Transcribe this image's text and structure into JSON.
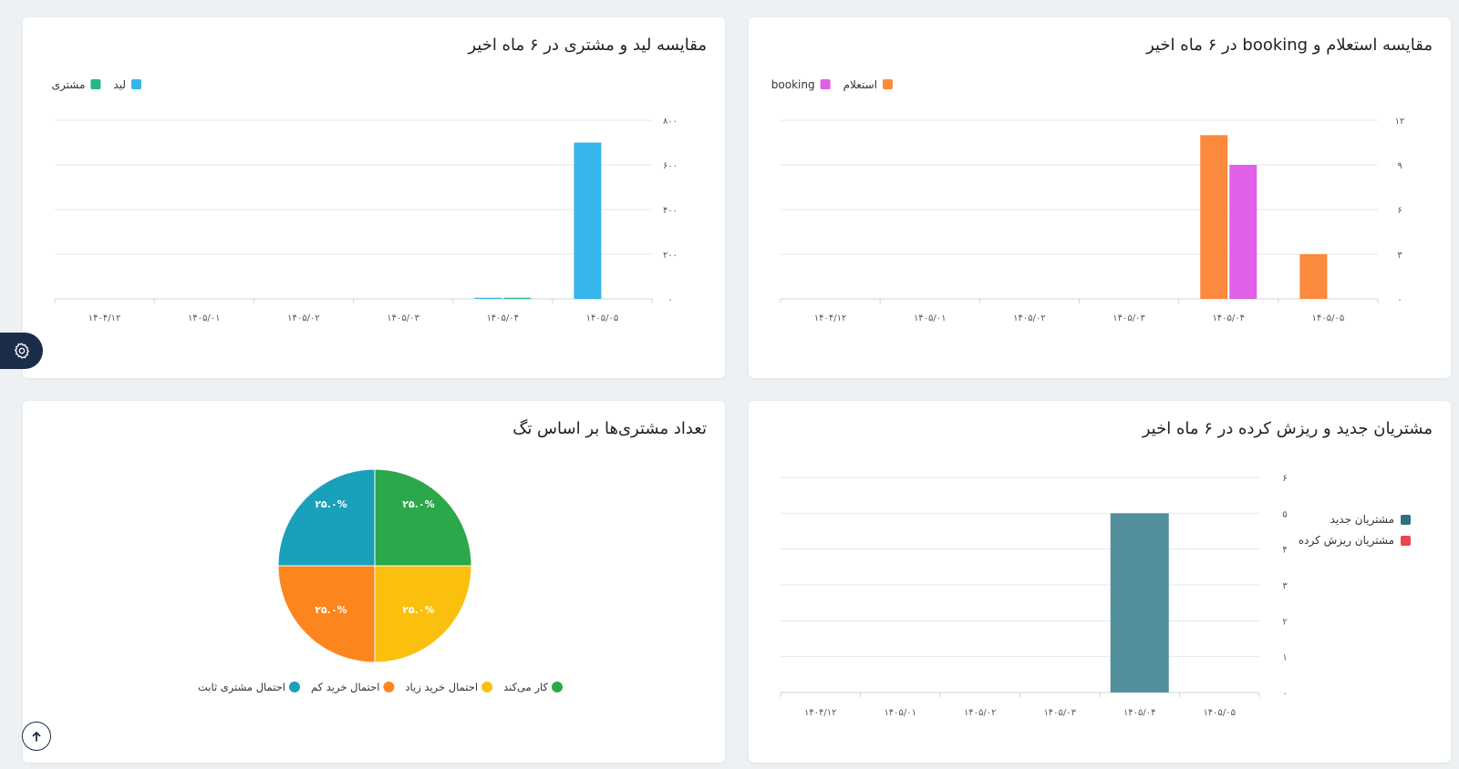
{
  "colors": {
    "grid": "#e5e7eb",
    "axis_text": "#555555",
    "settings_bg": "#1b2c4a"
  },
  "icons": {
    "settings": "gear-icon",
    "scroll_top": "arrow-up-icon"
  },
  "chart_data": [
    {
      "id": "inquiry_booking",
      "type": "bar",
      "title": "مقایسه استعلام و booking در ۶ ماه اخیر",
      "categories": [
        "۱۴۰۴/۱۲",
        "۱۴۰۵/۰۱",
        "۱۴۰۵/۰۲",
        "۱۴۰۵/۰۳",
        "۱۴۰۵/۰۴",
        "۱۴۰۵/۰۵"
      ],
      "series": [
        {
          "name": "استعلام",
          "color": "#fb8a3c",
          "values": [
            0,
            0,
            0,
            0,
            11,
            3
          ]
        },
        {
          "name": "booking",
          "color": "#e060e8",
          "values": [
            0,
            0,
            0,
            0,
            9,
            0
          ]
        }
      ],
      "ylim": [
        0,
        12
      ],
      "yticks": [
        "۰",
        "۳",
        "۶",
        "۹",
        "۱۲"
      ],
      "ytick_values": [
        0,
        3,
        6,
        9,
        12
      ],
      "legend": "top-left",
      "grid": true
    },
    {
      "id": "lead_customer",
      "type": "bar",
      "title": "مقایسه لید و مشتری در ۶ ماه اخیر",
      "categories": [
        "۱۴۰۴/۱۲",
        "۱۴۰۵/۰۱",
        "۱۴۰۵/۰۲",
        "۱۴۰۵/۰۳",
        "۱۴۰۵/۰۴",
        "۱۴۰۵/۰۵"
      ],
      "series": [
        {
          "name": "لید",
          "color": "#36b5ea",
          "values": [
            0,
            0,
            0,
            0,
            5,
            700
          ]
        },
        {
          "name": "مشتری",
          "color": "#22b884",
          "values": [
            0,
            0,
            0,
            0,
            5,
            0
          ]
        }
      ],
      "ylim": [
        0,
        800
      ],
      "yticks": [
        "۰",
        "۲۰۰",
        "۴۰۰",
        "۶۰۰",
        "۸۰۰"
      ],
      "ytick_values": [
        0,
        200,
        400,
        600,
        800
      ],
      "legend": "top-left",
      "grid": true
    },
    {
      "id": "new_churned",
      "type": "bar",
      "title": "مشتریان جدید و ریزش کرده در ۶ ماه اخیر",
      "categories": [
        "۱۴۰۴/۱۲",
        "۱۴۰۵/۰۱",
        "۱۴۰۵/۰۲",
        "۱۴۰۵/۰۳",
        "۱۴۰۵/۰۴",
        "۱۴۰۵/۰۵"
      ],
      "series": [
        {
          "name": "مشتریان جدید",
          "color": "#52909e",
          "legend_color": "#2e6f82",
          "values": [
            0,
            0,
            0,
            0,
            5,
            0
          ]
        },
        {
          "name": "مشتریان ریزش کرده",
          "color": "#e8474f",
          "values": [
            0,
            0,
            0,
            0,
            0,
            0
          ]
        }
      ],
      "ylim": [
        0,
        6
      ],
      "yticks": [
        "۰",
        "۱",
        "۲",
        "۳",
        "۴",
        "۵",
        "۶"
      ],
      "ytick_values": [
        0,
        1,
        2,
        3,
        4,
        5,
        6
      ],
      "legend": "right",
      "grid": true
    },
    {
      "id": "tags_pie",
      "type": "pie",
      "title": "تعداد مشتری‌ها بر اساس تگ",
      "slices": [
        {
          "name": "کار می‌کند",
          "value": 25.0,
          "label": "۲۵.۰%",
          "color": "#2ba84a"
        },
        {
          "name": "احتمال خرید زیاد",
          "value": 25.0,
          "label": "۲۵.۰%",
          "color": "#fbbf0e"
        },
        {
          "name": "احتمال خرید کم",
          "value": 25.0,
          "label": "۲۵.۰%",
          "color": "#fd851e"
        },
        {
          "name": "احتمال مشتری ثابت",
          "value": 25.0,
          "label": "۲۵.۰%",
          "color": "#19a0bb"
        }
      ],
      "legend": "bottom"
    }
  ]
}
